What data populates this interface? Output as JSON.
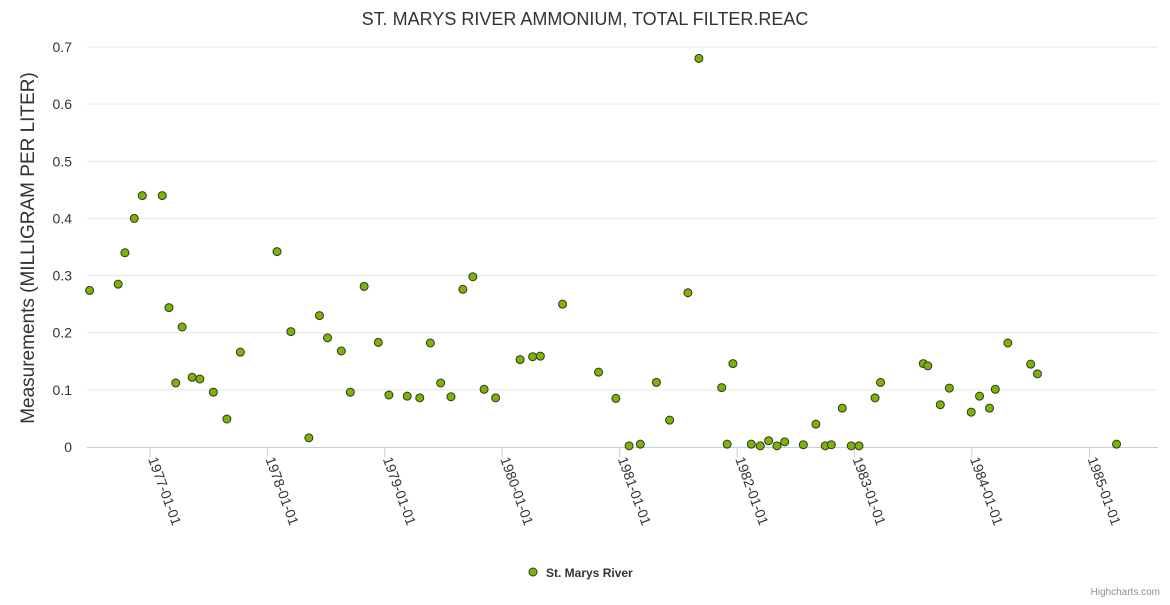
{
  "chart_data": {
    "type": "scatter",
    "title": "ST. MARYS RIVER AMMONIUM, TOTAL FILTER.REAC",
    "ylabel": "Measurements (MILLIGRAM PER LITER)",
    "xlabel": "",
    "ylim": [
      0,
      0.7
    ],
    "y_ticks": [
      "0",
      "0.1",
      "0.2",
      "0.3",
      "0.4",
      "0.5",
      "0.6",
      "0.7"
    ],
    "xlim": [
      "1976-06-19",
      "1985-08-02"
    ],
    "x_ticks": [
      "1977-01-01",
      "1978-01-01",
      "1979-01-01",
      "1980-01-01",
      "1981-01-01",
      "1982-01-01",
      "1983-01-01",
      "1984-01-01",
      "1985-01-01"
    ],
    "grid": "horizontal",
    "legend_position": "bottom-center",
    "series": [
      {
        "name": "St. Marys River",
        "color": "#7cb400",
        "stroke": "#333333",
        "points": [
          [
            "1976-06-27",
            0.274
          ],
          [
            "1976-09-24",
            0.285
          ],
          [
            "1976-10-15",
            0.34
          ],
          [
            "1976-11-13",
            0.4
          ],
          [
            "1976-12-08",
            0.44
          ],
          [
            "1977-02-08",
            0.44
          ],
          [
            "1977-03-01",
            0.244
          ],
          [
            "1977-03-22",
            0.112
          ],
          [
            "1977-04-11",
            0.21
          ],
          [
            "1977-05-12",
            0.122
          ],
          [
            "1977-06-05",
            0.119
          ],
          [
            "1977-07-17",
            0.096
          ],
          [
            "1977-08-28",
            0.049
          ],
          [
            "1977-10-09",
            0.166
          ],
          [
            "1978-01-31",
            0.342
          ],
          [
            "1978-03-15",
            0.202
          ],
          [
            "1978-05-10",
            0.016
          ],
          [
            "1978-06-12",
            0.23
          ],
          [
            "1978-07-07",
            0.191
          ],
          [
            "1978-08-19",
            0.168
          ],
          [
            "1978-09-16",
            0.096
          ],
          [
            "1978-10-29",
            0.281
          ],
          [
            "1978-12-12",
            0.183
          ],
          [
            "1979-01-14",
            0.091
          ],
          [
            "1979-03-12",
            0.089
          ],
          [
            "1979-04-20",
            0.086
          ],
          [
            "1979-05-23",
            0.182
          ],
          [
            "1979-06-24",
            0.112
          ],
          [
            "1979-07-26",
            0.088
          ],
          [
            "1979-09-01",
            0.276
          ],
          [
            "1979-10-02",
            0.298
          ],
          [
            "1979-11-06",
            0.101
          ],
          [
            "1979-12-12",
            0.086
          ],
          [
            "1980-02-26",
            0.153
          ],
          [
            "1980-04-05",
            0.158
          ],
          [
            "1980-04-29",
            0.159
          ],
          [
            "1980-07-07",
            0.25
          ],
          [
            "1980-10-27",
            0.131
          ],
          [
            "1980-12-20",
            0.085
          ],
          [
            "1981-01-30",
            0.002
          ],
          [
            "1981-03-06",
            0.005
          ],
          [
            "1981-04-25",
            0.113
          ],
          [
            "1981-06-05",
            0.047
          ],
          [
            "1981-08-01",
            0.27
          ],
          [
            "1981-09-04",
            0.68
          ],
          [
            "1981-11-14",
            0.104
          ],
          [
            "1981-12-01",
            0.005
          ],
          [
            "1981-12-19",
            0.146
          ],
          [
            "1982-02-14",
            0.005
          ],
          [
            "1982-03-14",
            0.002
          ],
          [
            "1982-04-09",
            0.011
          ],
          [
            "1982-05-05",
            0.002
          ],
          [
            "1982-05-29",
            0.009
          ],
          [
            "1982-07-26",
            0.004
          ],
          [
            "1982-09-03",
            0.04
          ],
          [
            "1982-10-02",
            0.002
          ],
          [
            "1982-10-21",
            0.004
          ],
          [
            "1982-11-24",
            0.068
          ],
          [
            "1982-12-22",
            0.002
          ],
          [
            "1983-01-15",
            0.002
          ],
          [
            "1983-03-06",
            0.086
          ],
          [
            "1983-03-23",
            0.113
          ],
          [
            "1983-08-03",
            0.146
          ],
          [
            "1983-08-17",
            0.142
          ],
          [
            "1983-09-25",
            0.074
          ],
          [
            "1983-10-23",
            0.103
          ],
          [
            "1983-12-30",
            0.061
          ],
          [
            "1984-01-25",
            0.089
          ],
          [
            "1984-02-25",
            0.068
          ],
          [
            "1984-03-14",
            0.101
          ],
          [
            "1984-04-22",
            0.182
          ],
          [
            "1984-07-02",
            0.145
          ],
          [
            "1984-07-23",
            0.128
          ],
          [
            "1985-03-26",
            0.005
          ]
        ]
      }
    ]
  },
  "credits": "Highcharts.com"
}
